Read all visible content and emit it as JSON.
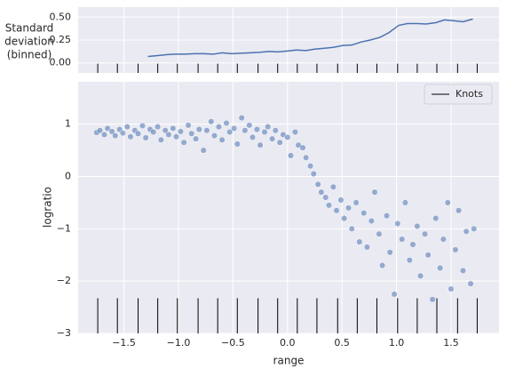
{
  "chart_data": [
    {
      "type": "line",
      "ylabel_lines": [
        "Standard",
        "deviation",
        "(binned)"
      ],
      "color": "#4c72b0",
      "knot_color": "#000000",
      "background": "#eaeaf2",
      "grid": true,
      "xlim": [
        -1.92,
        1.94
      ],
      "xticks": [
        -1.5,
        -1,
        -0.5,
        0,
        0.5,
        1,
        1.5
      ],
      "ylim": [
        -0.11,
        0.61
      ],
      "yticks": [
        {
          "value": 0,
          "label": "0.00"
        },
        {
          "value": 0.25,
          "label": "0.25"
        },
        {
          "value": 0.5,
          "label": "0.50"
        }
      ],
      "x": [
        -1.28,
        -1.19,
        -1.11,
        -1.02,
        -0.94,
        -0.85,
        -0.77,
        -0.68,
        -0.6,
        -0.51,
        -0.43,
        -0.34,
        -0.26,
        -0.17,
        -0.09,
        0,
        0.08,
        0.17,
        0.25,
        0.34,
        0.42,
        0.51,
        0.59,
        0.68,
        0.76,
        0.85,
        0.93,
        1.02,
        1.1,
        1.19,
        1.27,
        1.36,
        1.44,
        1.53,
        1.61,
        1.7
      ],
      "values": [
        0.07,
        0.08,
        0.09,
        0.095,
        0.095,
        0.1,
        0.1,
        0.095,
        0.11,
        0.1,
        0.105,
        0.11,
        0.115,
        0.125,
        0.12,
        0.13,
        0.14,
        0.135,
        0.15,
        0.16,
        0.17,
        0.19,
        0.195,
        0.23,
        0.25,
        0.28,
        0.33,
        0.41,
        0.43,
        0.43,
        0.425,
        0.44,
        0.47,
        0.46,
        0.45,
        0.48
      ],
      "knots": [
        -1.74,
        -1.56,
        -1.37,
        -1.19,
        -1.01,
        -0.82,
        -0.64,
        -0.46,
        -0.27,
        -0.09,
        0.09,
        0.27,
        0.46,
        0.64,
        0.82,
        1.01,
        1.19,
        1.37,
        1.56,
        1.74
      ]
    },
    {
      "type": "scatter",
      "xlabel": "range",
      "ylabel": "logratio",
      "color": "#4c72b0",
      "knot_color": "#000000",
      "background": "#eaeaf2",
      "grid": true,
      "legend": {
        "label": "Knots",
        "corner": "upper right"
      },
      "xlim": [
        -1.92,
        1.94
      ],
      "xticks": [
        {
          "value": -1.5,
          "label": "−1.5"
        },
        {
          "value": -1,
          "label": "−1.0"
        },
        {
          "value": -0.5,
          "label": "−0.5"
        },
        {
          "value": 0,
          "label": "0.0"
        },
        {
          "value": 0.5,
          "label": "0.5"
        },
        {
          "value": 1,
          "label": "1.0"
        },
        {
          "value": 1.5,
          "label": "1.5"
        }
      ],
      "ylim": [
        -3,
        1.81
      ],
      "yticks": [
        {
          "value": -3,
          "label": "−3"
        },
        {
          "value": -2,
          "label": "−2"
        },
        {
          "value": -1,
          "label": "−1"
        },
        0,
        1
      ],
      "x": [
        -1.75,
        -1.72,
        -1.68,
        -1.65,
        -1.61,
        -1.58,
        -1.54,
        -1.51,
        -1.47,
        -1.44,
        -1.4,
        -1.37,
        -1.33,
        -1.3,
        -1.26,
        -1.23,
        -1.19,
        -1.16,
        -1.12,
        -1.09,
        -1.05,
        -1.02,
        -0.98,
        -0.95,
        -0.91,
        -0.88,
        -0.84,
        -0.81,
        -0.77,
        -0.74,
        -0.7,
        -0.67,
        -0.63,
        -0.6,
        -0.56,
        -0.53,
        -0.49,
        -0.46,
        -0.42,
        -0.39,
        -0.35,
        -0.32,
        -0.28,
        -0.25,
        -0.21,
        -0.18,
        -0.14,
        -0.11,
        -0.07,
        -0.04,
        0,
        0.03,
        0.07,
        0.1,
        0.14,
        0.17,
        0.21,
        0.24,
        0.28,
        0.31,
        0.35,
        0.38,
        0.42,
        0.45,
        0.49,
        0.52,
        0.56,
        0.59,
        0.63,
        0.66,
        0.7,
        0.73,
        0.77,
        0.8,
        0.84,
        0.87,
        0.91,
        0.94,
        0.98,
        1.01,
        1.05,
        1.08,
        1.12,
        1.15,
        1.19,
        1.22,
        1.26,
        1.29,
        1.33,
        1.36,
        1.4,
        1.43,
        1.47,
        1.5,
        1.54,
        1.57,
        1.61,
        1.64,
        1.68,
        1.71
      ],
      "values": [
        0.84,
        0.88,
        0.8,
        0.92,
        0.86,
        0.78,
        0.9,
        0.83,
        0.95,
        0.76,
        0.88,
        0.82,
        0.97,
        0.74,
        0.9,
        0.85,
        0.95,
        0.7,
        0.88,
        0.8,
        0.92,
        0.76,
        0.86,
        0.65,
        0.98,
        0.82,
        0.72,
        0.9,
        0.5,
        0.88,
        1.05,
        0.78,
        0.95,
        0.7,
        1.02,
        0.85,
        0.92,
        0.62,
        1.12,
        0.88,
        0.98,
        0.75,
        0.9,
        0.6,
        0.85,
        0.95,
        0.72,
        0.88,
        0.65,
        0.8,
        0.75,
        0.4,
        0.85,
        0.6,
        0.55,
        0.36,
        0.2,
        0.05,
        -0.15,
        -0.3,
        -0.4,
        -0.55,
        -0.2,
        -0.65,
        -0.45,
        -0.8,
        -0.6,
        -1,
        -0.5,
        -1.25,
        -0.7,
        -1.35,
        -0.85,
        -0.3,
        -1.1,
        -1.7,
        -0.75,
        -1.45,
        -2.25,
        -0.9,
        -1.2,
        -0.5,
        -1.6,
        -1.3,
        -0.95,
        -1.9,
        -1.1,
        -1.5,
        -2.35,
        -0.8,
        -1.75,
        -1.2,
        -0.5,
        -2.15,
        -1.4,
        -0.65,
        -1.8,
        -1.05,
        -2.05,
        -1
      ],
      "knots": [
        -1.74,
        -1.56,
        -1.37,
        -1.19,
        -1.01,
        -0.82,
        -0.64,
        -0.46,
        -0.27,
        -0.09,
        0.09,
        0.27,
        0.46,
        0.64,
        0.82,
        1.01,
        1.19,
        1.37,
        1.56,
        1.74
      ]
    }
  ]
}
